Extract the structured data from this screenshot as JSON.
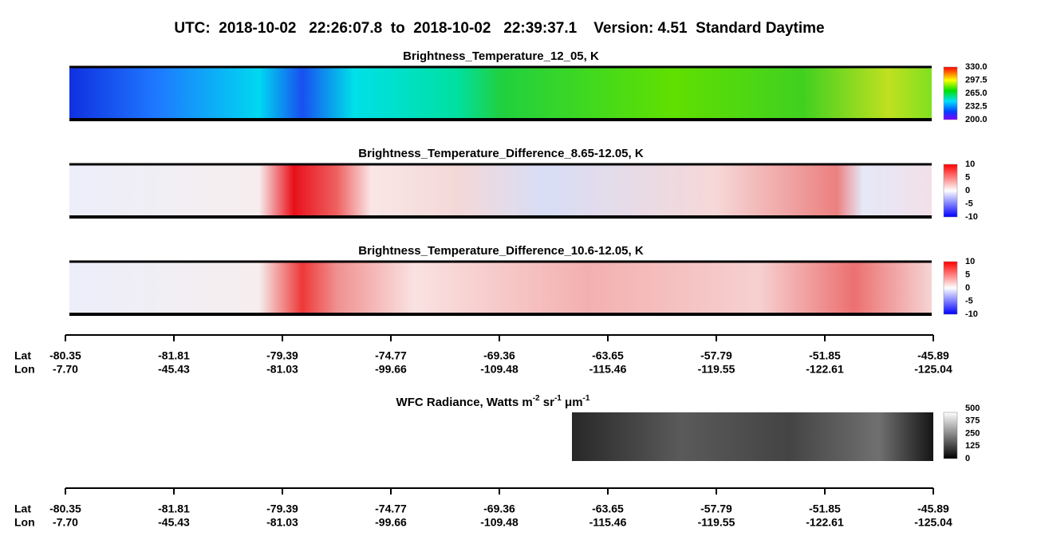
{
  "title": "UTC:  2018-10-02   22:26:07.8  to  2018-10-02   22:39:37.1    Version: 4.51  Standard Daytime",
  "panels": [
    {
      "title": "Brightness_Temperature_12_05, K",
      "colorbar": [
        "330.0",
        "297.5",
        "265.0",
        "232.5",
        "200.0"
      ]
    },
    {
      "title": "Brightness_Temperature_Difference_8.65-12.05, K",
      "colorbar": [
        "10",
        "5",
        "0",
        "-5",
        "-10"
      ]
    },
    {
      "title": "Brightness_Temperature_Difference_10.6-12.05, K",
      "colorbar": [
        "10",
        "5",
        "0",
        "-5",
        "-10"
      ]
    }
  ],
  "axis": {
    "row_labels": [
      "Lat",
      "Lon"
    ],
    "lat": [
      "-80.35",
      "-81.81",
      "-79.39",
      "-74.77",
      "-69.36",
      "-63.65",
      "-57.79",
      "-51.85",
      "-45.89"
    ],
    "lon": [
      "-7.70",
      "-45.43",
      "-81.03",
      "-99.66",
      "-109.48",
      "-115.46",
      "-119.55",
      "-122.61",
      "-125.04"
    ]
  },
  "wfc": {
    "title": [
      "WFC Radiance, Watts m",
      "-2",
      " sr",
      "-1",
      " μm",
      "-1"
    ],
    "colorbar": [
      "500",
      "375",
      "250",
      "125",
      "0"
    ]
  }
}
